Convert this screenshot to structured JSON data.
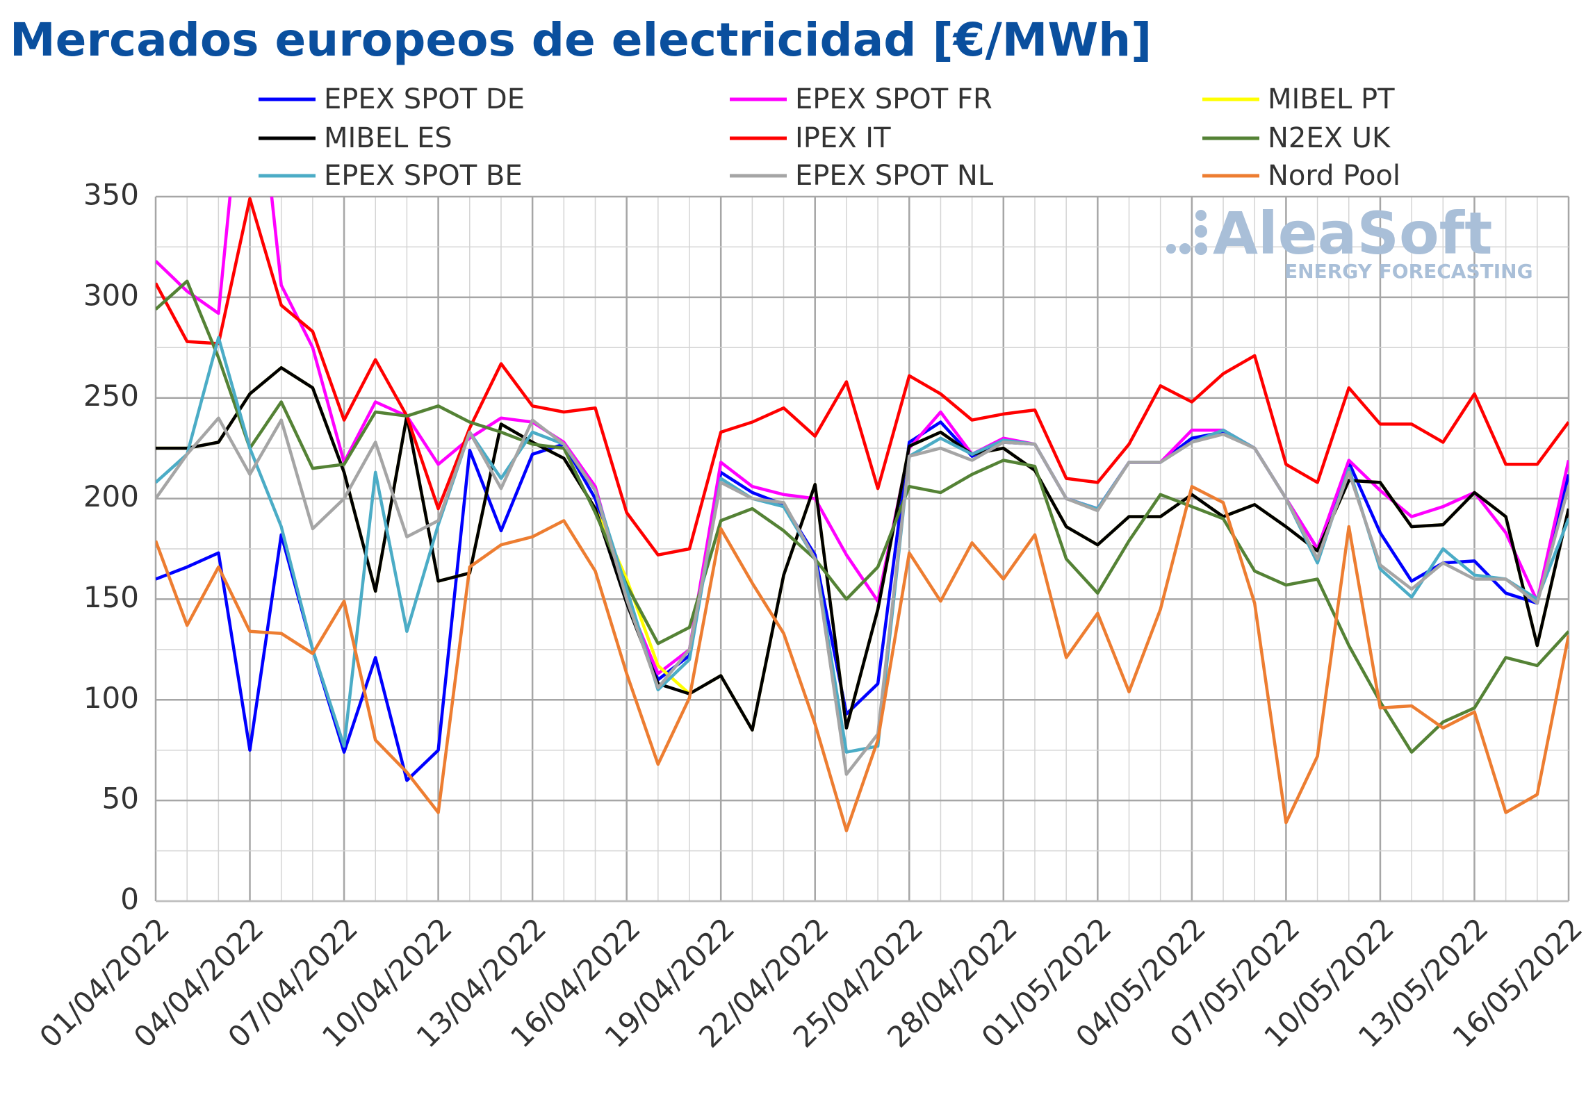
{
  "chart_data": {
    "type": "line",
    "title": "Mercados europeos de electricidad [€/MWh]",
    "watermark": {
      "brand": "AleaSoft",
      "tagline": "ENERGY FORECASTING"
    },
    "categories": [
      "01/04/2022",
      null,
      null,
      "04/04/2022",
      null,
      null,
      "07/04/2022",
      null,
      null,
      "10/04/2022",
      null,
      null,
      "13/04/2022",
      null,
      null,
      "16/04/2022",
      null,
      null,
      "19/04/2022",
      null,
      null,
      "22/04/2022",
      null,
      null,
      "25/04/2022",
      null,
      null,
      "28/04/2022",
      null,
      null,
      "01/05/2022",
      null,
      null,
      "04/05/2022",
      null,
      null,
      "07/05/2022",
      null,
      null,
      "10/05/2022",
      null,
      null,
      "13/05/2022",
      null,
      null,
      "16/05/2022"
    ],
    "ylim": [
      0,
      350
    ],
    "yticks": [
      0,
      50,
      100,
      150,
      200,
      250,
      300,
      350
    ],
    "grid": true,
    "series": [
      {
        "name": "EPEX SPOT DE",
        "color": "#0000ff",
        "values": [
          160,
          166,
          173,
          75,
          182,
          125,
          74,
          121,
          60,
          75,
          224,
          184,
          222,
          227,
          200,
          150,
          110,
          122,
          213,
          203,
          197,
          172,
          93,
          108,
          228,
          238,
          221,
          228,
          227,
          200,
          195,
          218,
          218,
          230,
          233,
          225,
          200,
          175,
          218,
          183,
          159,
          168,
          169,
          153,
          148,
          212
        ]
      },
      {
        "name": "EPEX SPOT FR",
        "color": "#ff00ff",
        "values": [
          318,
          303,
          292,
          450,
          306,
          275,
          218,
          248,
          241,
          217,
          230,
          240,
          238,
          228,
          206,
          150,
          113,
          125,
          218,
          206,
          202,
          200,
          172,
          149,
          225,
          243,
          222,
          230,
          227,
          200,
          195,
          218,
          218,
          234,
          234,
          225,
          200,
          175,
          219,
          204,
          191,
          196,
          203,
          183,
          149,
          219
        ]
      },
      {
        "name": "MIBEL PT",
        "color": "#ffff00",
        "values": [
          225,
          225,
          228,
          252,
          265,
          255,
          213,
          154,
          241,
          159,
          163,
          237,
          228,
          220,
          195,
          160,
          117,
          103,
          112,
          85,
          162,
          207,
          86,
          145,
          226,
          233,
          222,
          225,
          214,
          186,
          177,
          191,
          191,
          202,
          191,
          197,
          186,
          174,
          209,
          208,
          186,
          187,
          203,
          191,
          127,
          195
        ]
      },
      {
        "name": "MIBEL ES",
        "color": "#000000",
        "values": [
          225,
          225,
          228,
          252,
          265,
          255,
          213,
          154,
          241,
          159,
          163,
          237,
          228,
          220,
          195,
          148,
          108,
          103,
          112,
          85,
          162,
          207,
          86,
          145,
          226,
          233,
          222,
          225,
          214,
          186,
          177,
          191,
          191,
          202,
          191,
          197,
          186,
          174,
          209,
          208,
          186,
          187,
          203,
          191,
          127,
          195
        ]
      },
      {
        "name": "IPEX IT",
        "color": "#ff0000",
        "values": [
          307,
          278,
          277,
          349,
          296,
          283,
          239,
          269,
          241,
          195,
          235,
          267,
          246,
          243,
          245,
          193,
          172,
          175,
          233,
          238,
          245,
          231,
          258,
          205,
          261,
          252,
          239,
          242,
          244,
          210,
          208,
          227,
          256,
          248,
          262,
          271,
          217,
          208,
          255,
          237,
          237,
          228,
          252,
          217,
          217,
          238
        ]
      },
      {
        "name": "N2EX UK",
        "color": "#548235",
        "values": [
          294,
          308,
          270,
          225,
          248,
          215,
          217,
          243,
          241,
          246,
          238,
          233,
          227,
          225,
          193,
          157,
          128,
          136,
          189,
          195,
          184,
          170,
          150,
          166,
          206,
          203,
          212,
          219,
          216,
          170,
          153,
          179,
          202,
          196,
          190,
          164,
          157,
          160,
          127,
          99,
          74,
          89,
          96,
          121,
          117,
          134
        ]
      },
      {
        "name": "EPEX SPOT BE",
        "color": "#4bacc6",
        "values": [
          208,
          222,
          280,
          225,
          186,
          125,
          77,
          213,
          134,
          187,
          233,
          210,
          233,
          227,
          204,
          155,
          105,
          120,
          210,
          200,
          196,
          170,
          74,
          77,
          221,
          230,
          222,
          229,
          227,
          200,
          195,
          218,
          218,
          228,
          234,
          225,
          200,
          168,
          215,
          165,
          151,
          175,
          162,
          160,
          150,
          190
        ]
      },
      {
        "name": "EPEX SPOT NL",
        "color": "#a5a5a5",
        "values": [
          200,
          222,
          240,
          212,
          239,
          185,
          200,
          228,
          181,
          189,
          233,
          205,
          239,
          227,
          204,
          150,
          106,
          125,
          208,
          200,
          198,
          170,
          63,
          83,
          221,
          225,
          219,
          228,
          227,
          200,
          194,
          218,
          218,
          228,
          232,
          225,
          200,
          170,
          213,
          167,
          155,
          168,
          160,
          160,
          148,
          206
        ]
      },
      {
        "name": "Nord Pool",
        "color": "#ed7d31",
        "values": [
          179,
          137,
          166,
          134,
          133,
          123,
          149,
          80,
          64,
          44,
          166,
          177,
          181,
          189,
          164,
          113,
          68,
          101,
          185,
          158,
          133,
          88,
          35,
          80,
          173,
          149,
          178,
          160,
          182,
          121,
          143,
          104,
          145,
          206,
          198,
          148,
          39,
          72,
          186,
          96,
          97,
          86,
          94,
          44,
          53,
          132
        ]
      }
    ]
  }
}
